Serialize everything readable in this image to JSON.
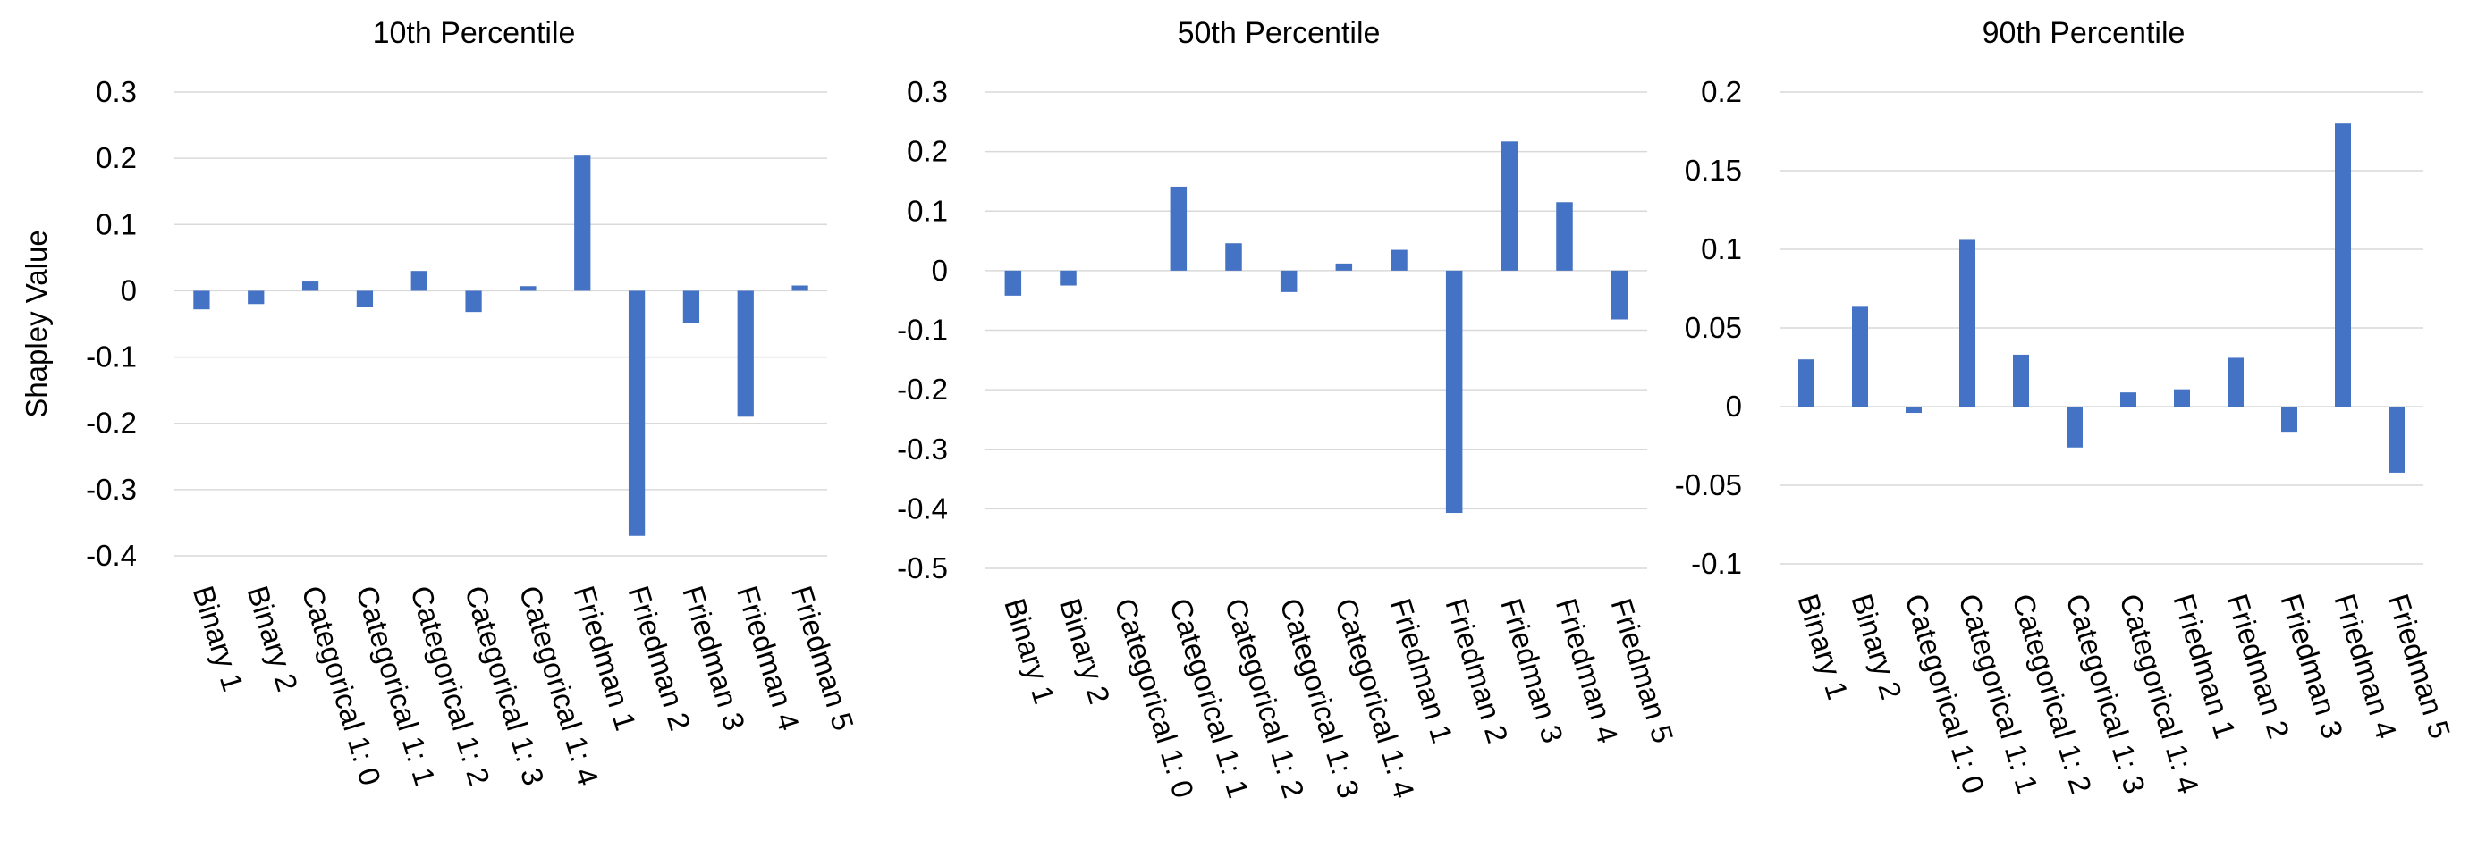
{
  "chart_data": [
    {
      "type": "bar",
      "title": "10th Percentile",
      "ylabel": "Shapley Value",
      "xlabel": "",
      "categories": [
        "Binary 1",
        "Binary 2",
        "Categorical 1: 0",
        "Categorical 1: 1",
        "Categorical 1: 2",
        "Categorical 1: 3",
        "Categorical 1: 4",
        "Friedman 1",
        "Friedman 2",
        "Friedman 3",
        "Friedman 4",
        "Friedman 5"
      ],
      "values": [
        -0.028,
        -0.02,
        0.014,
        -0.025,
        0.03,
        -0.032,
        0.007,
        0.204,
        -0.37,
        -0.048,
        -0.19,
        0.008
      ],
      "ylim": [
        -0.4,
        0.3
      ],
      "yticks": [
        "0.3",
        "0.2",
        "0.1",
        "0",
        "-0.1",
        "-0.2",
        "-0.3",
        "-0.4"
      ],
      "grid": true,
      "color": "#4472c4"
    },
    {
      "type": "bar",
      "title": "50th Percentile",
      "ylabel": "",
      "xlabel": "",
      "categories": [
        "Binary 1",
        "Binary 2",
        "Categorical 1: 0",
        "Categorical 1: 1",
        "Categorical 1: 2",
        "Categorical 1: 3",
        "Categorical 1: 4",
        "Friedman 1",
        "Friedman 2",
        "Friedman 3",
        "Friedman 4",
        "Friedman 5"
      ],
      "values": [
        -0.042,
        -0.025,
        0.0,
        0.141,
        0.046,
        -0.036,
        0.012,
        0.035,
        -0.407,
        0.217,
        0.115,
        -0.082
      ],
      "ylim": [
        -0.5,
        0.3
      ],
      "yticks": [
        "0.3",
        "0.2",
        "0.1",
        "0",
        "-0.1",
        "-0.2",
        "-0.3",
        "-0.4",
        "-0.5"
      ],
      "grid": true,
      "color": "#4472c4"
    },
    {
      "type": "bar",
      "title": "90th Percentile",
      "ylabel": "",
      "xlabel": "",
      "categories": [
        "Binary 1",
        "Binary 2",
        "Categorical 1: 0",
        "Categorical 1: 1",
        "Categorical 1: 2",
        "Categorical 1: 3",
        "Categorical 1: 4",
        "Friedman 1",
        "Friedman 2",
        "Friedman 3",
        "Friedman 4",
        "Friedman 5"
      ],
      "values": [
        0.03,
        0.064,
        -0.004,
        0.106,
        0.033,
        -0.026,
        0.009,
        0.011,
        0.031,
        -0.016,
        0.18,
        -0.042
      ],
      "ylim": [
        -0.1,
        0.2
      ],
      "yticks": [
        "0.2",
        "0.15",
        "0.1",
        "0.05",
        "0",
        "-0.05",
        "-0.1"
      ],
      "grid": true,
      "color": "#4472c4"
    }
  ]
}
